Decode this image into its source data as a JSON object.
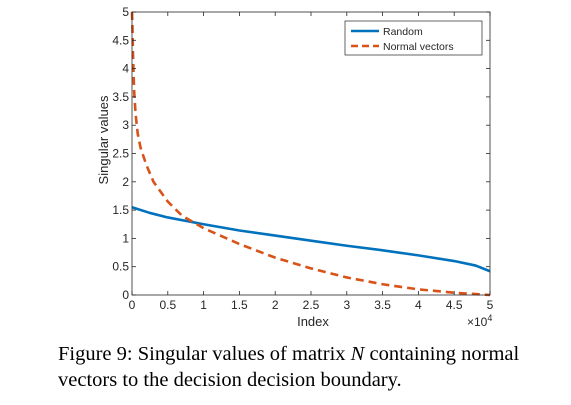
{
  "chart_data": {
    "type": "line",
    "xlabel": "Index",
    "ylabel": "Singular values",
    "xlim": [
      0,
      50000
    ],
    "ylim": [
      0,
      5
    ],
    "x_exponent_label": "×10",
    "x_exponent_power": "4",
    "x_ticks": [
      0,
      5000,
      10000,
      15000,
      20000,
      25000,
      30000,
      35000,
      40000,
      45000,
      50000
    ],
    "x_tick_labels": [
      "0",
      "0.5",
      "1",
      "1.5",
      "2",
      "2.5",
      "3",
      "3.5",
      "4",
      "4.5",
      "5"
    ],
    "y_ticks": [
      0,
      0.5,
      1,
      1.5,
      2,
      2.5,
      3,
      3.5,
      4,
      4.5,
      5
    ],
    "y_tick_labels": [
      "0",
      "0.5",
      "1",
      "1.5",
      "2",
      "2.5",
      "3",
      "3.5",
      "4",
      "4.5",
      "5"
    ],
    "grid": false,
    "legend_position": "top-right",
    "series": [
      {
        "name": "Random",
        "style": "solid",
        "color": "#0072BD",
        "x": [
          0,
          2500,
          5000,
          10000,
          15000,
          20000,
          25000,
          30000,
          35000,
          40000,
          45000,
          48000,
          50000
        ],
        "y": [
          1.55,
          1.45,
          1.37,
          1.25,
          1.14,
          1.05,
          0.96,
          0.87,
          0.79,
          0.7,
          0.6,
          0.52,
          0.42
        ]
      },
      {
        "name": "Normal vectors",
        "style": "dashed",
        "color": "#D95319",
        "x": [
          0,
          50,
          150,
          300,
          500,
          800,
          1200,
          2000,
          3000,
          5000,
          7000,
          10000,
          15000,
          20000,
          25000,
          30000,
          35000,
          40000,
          45000,
          50000
        ],
        "y": [
          5.0,
          4.8,
          4.2,
          3.6,
          3.2,
          2.85,
          2.6,
          2.3,
          2.0,
          1.65,
          1.4,
          1.18,
          0.9,
          0.66,
          0.47,
          0.31,
          0.19,
          0.1,
          0.04,
          0.0
        ]
      }
    ]
  },
  "caption": {
    "prefix": "Figure 9:   Singular values of matrix ",
    "symbol": "N",
    "suffix": " containing normal vectors to the decision decision boundary."
  }
}
